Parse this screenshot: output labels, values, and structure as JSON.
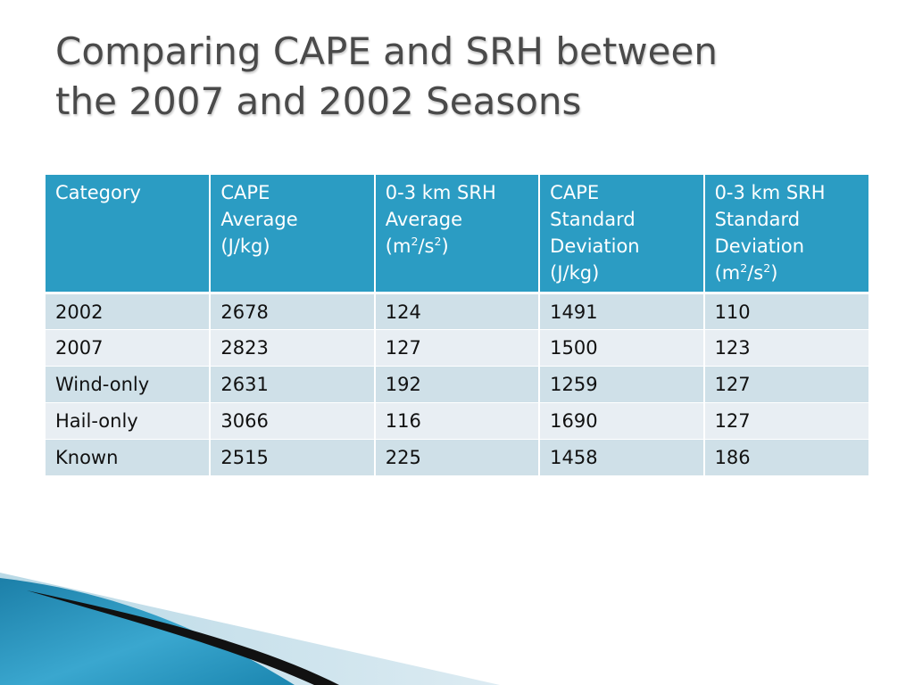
{
  "slide": {
    "title_lines": [
      "Comparing CAPE and SRH between",
      "the 2007 and 2002 Seasons"
    ]
  },
  "table": {
    "headers": [
      {
        "lines": [
          "Category"
        ]
      },
      {
        "lines": [
          "CAPE",
          "Average",
          "(J/kg)"
        ]
      },
      {
        "lines": [
          "0-3 km SRH",
          "Average"
        ],
        "unit": {
          "base1": "(m",
          "sup1": "2",
          "base2": "/s",
          "sup2": "2",
          "base3": ")"
        }
      },
      {
        "lines": [
          "CAPE",
          "Standard",
          "Deviation",
          "(J/kg)"
        ]
      },
      {
        "lines": [
          "0-3 km SRH",
          "Standard",
          "Deviation"
        ],
        "unit": {
          "base1": "(m",
          "sup1": "2",
          "base2": "/s",
          "sup2": "2",
          "base3": ")"
        }
      }
    ],
    "rows": [
      [
        "2002",
        "2678",
        "124",
        "1491",
        "110"
      ],
      [
        "2007",
        "2823",
        "127",
        "1500",
        "123"
      ],
      [
        "Wind-only",
        "2631",
        "192",
        "1259",
        "127"
      ],
      [
        "Hail-only",
        "3066",
        "116",
        "1690",
        "127"
      ],
      [
        "Known",
        "2515",
        "225",
        "1458",
        "186"
      ]
    ]
  },
  "colors": {
    "header_bg": "#2b9cc3",
    "row_odd_bg": "#cfe0e8",
    "row_even_bg": "#e8eef3",
    "title_text": "#4a4a4a",
    "accent_blue": "#1f8db5"
  }
}
